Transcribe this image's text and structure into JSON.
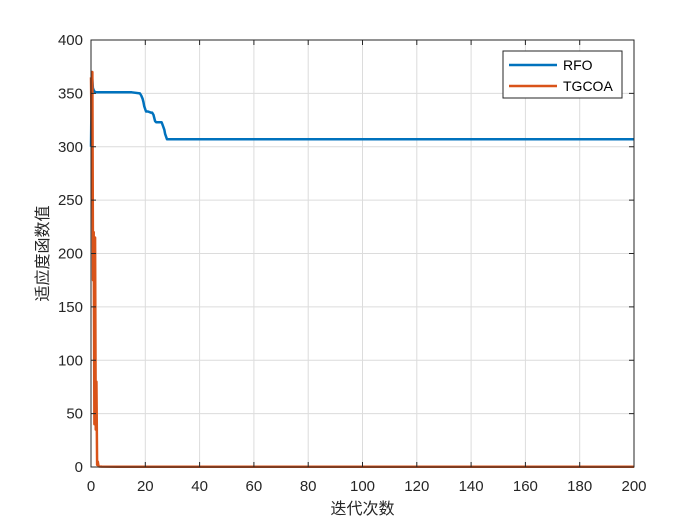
{
  "chart_data": {
    "type": "line",
    "title": "",
    "xlabel": "迭代次数",
    "ylabel": "适应度函数值",
    "xlim": [
      0,
      200
    ],
    "ylim": [
      0,
      400
    ],
    "xticks": [
      0,
      20,
      40,
      60,
      80,
      100,
      120,
      140,
      160,
      180,
      200
    ],
    "yticks": [
      0,
      50,
      100,
      150,
      200,
      250,
      300,
      350,
      400
    ],
    "grid": true,
    "legend_position": "top-right",
    "series": [
      {
        "name": "RFO",
        "color": "#0072BD",
        "x": [
          0,
          0.3,
          0.7,
          1,
          1.5,
          2,
          5,
          10,
          15,
          18,
          18.5,
          19,
          19.3,
          19.6,
          20,
          20.3,
          21,
          22,
          22.5,
          23,
          23.3,
          23.6,
          24,
          25,
          26,
          26.3,
          27,
          27.3,
          28,
          29,
          30,
          40,
          60,
          100,
          150,
          200
        ],
        "y": [
          300,
          370,
          355,
          353,
          351,
          351,
          351,
          351,
          351,
          350,
          348,
          345,
          342,
          338,
          335,
          333,
          333,
          332,
          332,
          330,
          327,
          324,
          323,
          323,
          323,
          321,
          316,
          312,
          307,
          307,
          307,
          307,
          307,
          307,
          307,
          307
        ]
      },
      {
        "name": "TGCOA",
        "color": "#D95319",
        "x": [
          0,
          0.25,
          0.5,
          0.75,
          1,
          1.25,
          1.5,
          1.75,
          2,
          2.25,
          2.5,
          2.75,
          3,
          4,
          10,
          50,
          100,
          150,
          200
        ],
        "y": [
          365,
          310,
          370,
          175,
          220,
          40,
          215,
          35,
          80,
          2,
          5,
          1,
          0.5,
          0.3,
          0.2,
          0.2,
          0.2,
          0.2,
          0.2
        ]
      }
    ]
  }
}
